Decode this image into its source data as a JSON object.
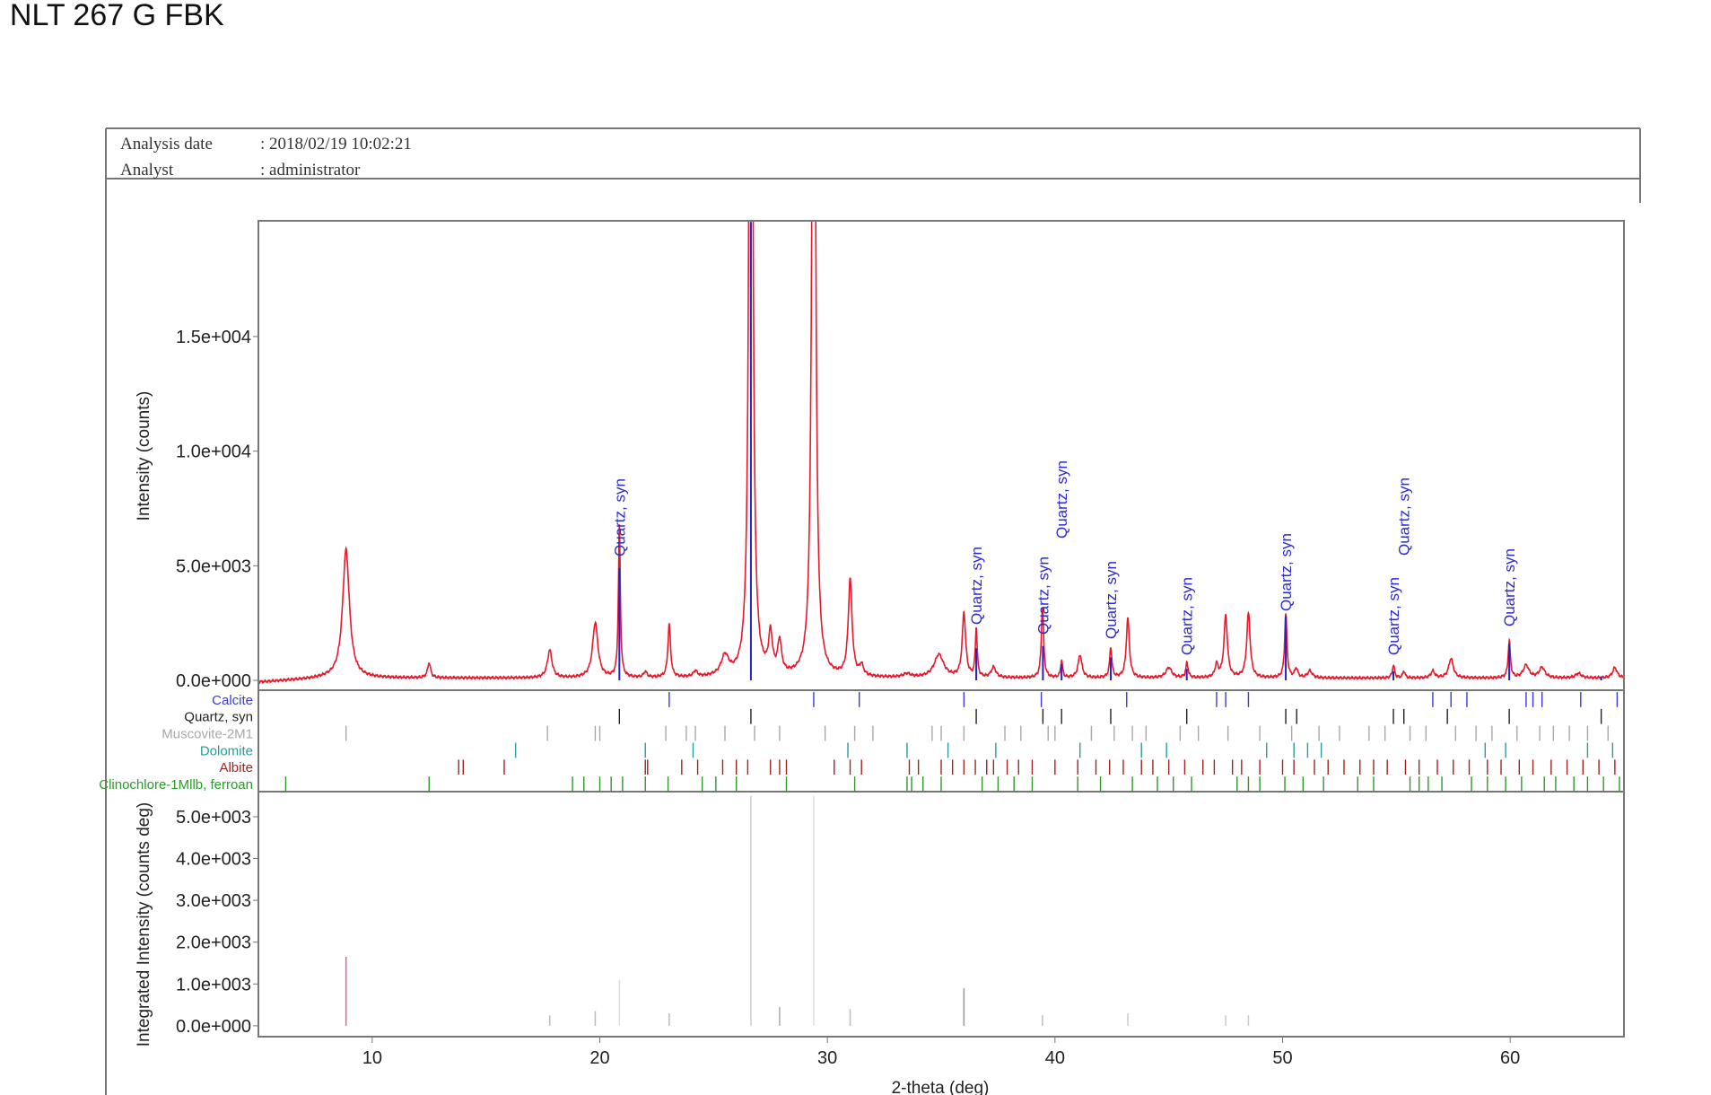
{
  "title": ": NLT 267 G FBK",
  "header": {
    "analysis_date_label": "Analysis date",
    "analysis_date": ": 2018/02/19 10:02:21",
    "analyst_label": "Analyst",
    "analyst": ": administrator"
  },
  "chart_data": [
    {
      "type": "line",
      "xlabel": "2-theta (deg)",
      "ylabel": "Intensity (counts)",
      "xlim": [
        5,
        65
      ],
      "ylim": [
        -430,
        20050
      ],
      "xticks": [
        "10",
        "20",
        "30",
        "40",
        "50",
        "60"
      ],
      "yticks": [
        {
          "value": 0,
          "label": "0.0e+000"
        },
        {
          "value": 5000,
          "label": "5.0e+003"
        },
        {
          "value": 10000,
          "label": "1.0e+004"
        },
        {
          "value": 15000,
          "label": "1.5e+004"
        }
      ],
      "line_color": "#e8192c",
      "background_counts": 100,
      "peaks": [
        [
          8.85,
          5600,
          0.18
        ],
        [
          12.5,
          650,
          0.08
        ],
        [
          17.8,
          1200,
          0.12
        ],
        [
          19.8,
          2400,
          0.14
        ],
        [
          20.86,
          6600,
          0.05
        ],
        [
          22.0,
          250,
          0.08
        ],
        [
          23.05,
          2300,
          0.07
        ],
        [
          24.2,
          250,
          0.1
        ],
        [
          25.5,
          850,
          0.2
        ],
        [
          26.64,
          60000,
          0.07
        ],
        [
          27.5,
          1700,
          0.1
        ],
        [
          27.9,
          1400,
          0.1
        ],
        [
          29.4,
          45000,
          0.08
        ],
        [
          31.0,
          4200,
          0.1
        ],
        [
          31.5,
          450,
          0.1
        ],
        [
          33.5,
          150,
          0.2
        ],
        [
          34.9,
          1000,
          0.25
        ],
        [
          36.0,
          2800,
          0.09
        ],
        [
          36.54,
          2100,
          0.05
        ],
        [
          37.3,
          450,
          0.12
        ],
        [
          39.45,
          3100,
          0.06
        ],
        [
          40.29,
          750,
          0.05
        ],
        [
          41.1,
          1000,
          0.1
        ],
        [
          42.45,
          1300,
          0.06
        ],
        [
          43.2,
          2600,
          0.08
        ],
        [
          45.0,
          450,
          0.15
        ],
        [
          45.8,
          650,
          0.06
        ],
        [
          47.1,
          550,
          0.08
        ],
        [
          47.5,
          2700,
          0.09
        ],
        [
          48.5,
          2800,
          0.09
        ],
        [
          50.14,
          2800,
          0.06
        ],
        [
          50.6,
          400,
          0.08
        ],
        [
          51.2,
          300,
          0.12
        ],
        [
          54.87,
          550,
          0.06
        ],
        [
          55.33,
          300,
          0.06
        ],
        [
          56.6,
          300,
          0.1
        ],
        [
          57.4,
          850,
          0.12
        ],
        [
          59.96,
          1600,
          0.06
        ],
        [
          60.7,
          550,
          0.15
        ],
        [
          61.4,
          450,
          0.15
        ],
        [
          63.0,
          200,
          0.15
        ],
        [
          64.6,
          450,
          0.12
        ]
      ],
      "annotations": {
        "text": "Quartz, syn",
        "color": "#2b2bd6",
        "positions": [
          20.86,
          36.54,
          39.47,
          40.29,
          42.45,
          45.79,
          50.14,
          54.87,
          55.33,
          59.96
        ]
      },
      "reference_sticks": {
        "phase": "Quartz, syn",
        "color": "#2323c8",
        "values": [
          [
            20.86,
            4900
          ],
          [
            26.64,
            20000
          ],
          [
            36.54,
            1400
          ],
          [
            39.47,
            1500
          ],
          [
            40.29,
            700
          ],
          [
            42.45,
            1000
          ],
          [
            45.79,
            500
          ],
          [
            50.14,
            2800
          ],
          [
            54.87,
            400
          ],
          [
            59.96,
            1600
          ],
          [
            64.0,
            150
          ]
        ]
      }
    },
    {
      "type": "stick",
      "legend": [
        {
          "name": "Calcite",
          "color": "#3a3ae0",
          "positions": [
            23.05,
            29.4,
            31.4,
            36.0,
            39.4,
            43.15,
            47.1,
            47.5,
            48.5,
            56.6,
            57.4,
            58.1,
            60.7,
            61.0,
            61.4,
            63.1,
            64.7
          ]
        },
        {
          "name": "Quartz, syn",
          "color": "#222222",
          "positions": [
            20.86,
            26.64,
            36.54,
            39.47,
            40.29,
            42.45,
            45.79,
            50.14,
            50.62,
            54.87,
            55.33,
            57.24,
            59.96,
            64.0
          ]
        },
        {
          "name": "Muscovite-2M1",
          "color": "#a8a8a8",
          "positions": [
            8.85,
            17.7,
            19.8,
            20.0,
            22.9,
            23.8,
            24.2,
            25.5,
            26.8,
            27.9,
            29.9,
            31.2,
            32.0,
            34.6,
            35.0,
            36.0,
            37.8,
            38.5,
            39.7,
            40.0,
            41.6,
            42.6,
            43.4,
            44.0,
            45.5,
            46.3,
            47.6,
            49.0,
            50.4,
            51.6,
            52.5,
            53.8,
            54.5,
            55.6,
            56.3,
            57.6,
            58.5,
            59.2,
            60.3,
            61.3,
            61.9,
            62.6,
            63.4,
            64.3
          ]
        },
        {
          "name": "Dolomite",
          "color": "#2a9a9a",
          "positions": [
            16.3,
            22.0,
            24.1,
            30.9,
            33.5,
            35.3,
            37.4,
            41.1,
            43.8,
            44.9,
            49.3,
            50.5,
            51.1,
            51.7,
            58.9,
            59.8,
            63.4,
            64.5
          ]
        },
        {
          "name": "Albite",
          "color": "#a02424",
          "positions": [
            13.8,
            14.0,
            15.8,
            22.0,
            22.1,
            23.6,
            24.3,
            25.4,
            26.0,
            26.5,
            27.5,
            27.9,
            28.2,
            30.3,
            31.0,
            31.5,
            33.6,
            34.0,
            35.0,
            35.5,
            36.0,
            36.5,
            37.0,
            37.3,
            37.9,
            38.4,
            39.0,
            40.0,
            41.0,
            41.8,
            42.4,
            43.0,
            43.8,
            44.3,
            45.0,
            45.7,
            46.5,
            47.0,
            47.8,
            48.2,
            49.0,
            50.0,
            50.5,
            51.4,
            52.0,
            52.7,
            53.4,
            54.0,
            54.6,
            55.4,
            56.0,
            56.8,
            57.5,
            58.2,
            59.0,
            59.6,
            60.4,
            61.0,
            61.8,
            62.5,
            63.2,
            63.9,
            64.6
          ]
        },
        {
          "name": "Clinochlore-1Mllb, ferroan",
          "color": "#2a9a2a",
          "positions": [
            6.2,
            12.5,
            18.8,
            19.3,
            20.0,
            20.5,
            21.0,
            22.0,
            23.0,
            24.5,
            25.1,
            26.0,
            28.2,
            31.2,
            33.5,
            33.7,
            34.2,
            35.0,
            36.8,
            37.5,
            38.2,
            39.0,
            41.0,
            42.0,
            43.4,
            44.5,
            45.2,
            46.0,
            48.0,
            48.5,
            49.0,
            50.1,
            50.9,
            51.8,
            53.3,
            54.0,
            55.6,
            56.0,
            56.4,
            57.0,
            58.3,
            59.0,
            59.8,
            60.5,
            61.5,
            62.0,
            62.8,
            63.4,
            64.1,
            64.8
          ]
        }
      ]
    },
    {
      "type": "bar",
      "xlabel": "2-theta (deg)",
      "ylabel": "Integrated Intensity (counts deg)",
      "xlim": [
        5,
        65
      ],
      "ylim": [
        -260,
        5600
      ],
      "xticks": [
        "10",
        "20",
        "30",
        "40",
        "50",
        "60"
      ],
      "yticks": [
        {
          "value": 0,
          "label": "0.0e+000"
        },
        {
          "value": 1000,
          "label": "1.0e+003"
        },
        {
          "value": 2000,
          "label": "2.0e+003"
        },
        {
          "value": 3000,
          "label": "3.0e+003"
        },
        {
          "value": 4000,
          "label": "4.0e+003"
        },
        {
          "value": 5000,
          "label": "5.0e+003"
        }
      ],
      "bars": [
        {
          "x": 8.85,
          "value": 1650,
          "color": "#e060a0"
        },
        {
          "x": 17.8,
          "value": 250,
          "color": "#bbbbbb"
        },
        {
          "x": 19.8,
          "value": 350,
          "color": "#bbbbbb"
        },
        {
          "x": 20.86,
          "value": 1100,
          "color": "#dddddd"
        },
        {
          "x": 23.05,
          "value": 300,
          "color": "#bbbbbb"
        },
        {
          "x": 26.64,
          "value": 5500,
          "color": "#cccccc"
        },
        {
          "x": 27.9,
          "value": 450,
          "color": "#aaaaaa"
        },
        {
          "x": 29.4,
          "value": 5500,
          "color": "#dddddd"
        },
        {
          "x": 31.0,
          "value": 400,
          "color": "#bbbbbb"
        },
        {
          "x": 36.0,
          "value": 900,
          "color": "#999999"
        },
        {
          "x": 39.45,
          "value": 250,
          "color": "#bbbbbb"
        },
        {
          "x": 43.2,
          "value": 300,
          "color": "#cccccc"
        },
        {
          "x": 47.5,
          "value": 250,
          "color": "#cccccc"
        },
        {
          "x": 48.5,
          "value": 250,
          "color": "#cccccc"
        }
      ]
    }
  ]
}
